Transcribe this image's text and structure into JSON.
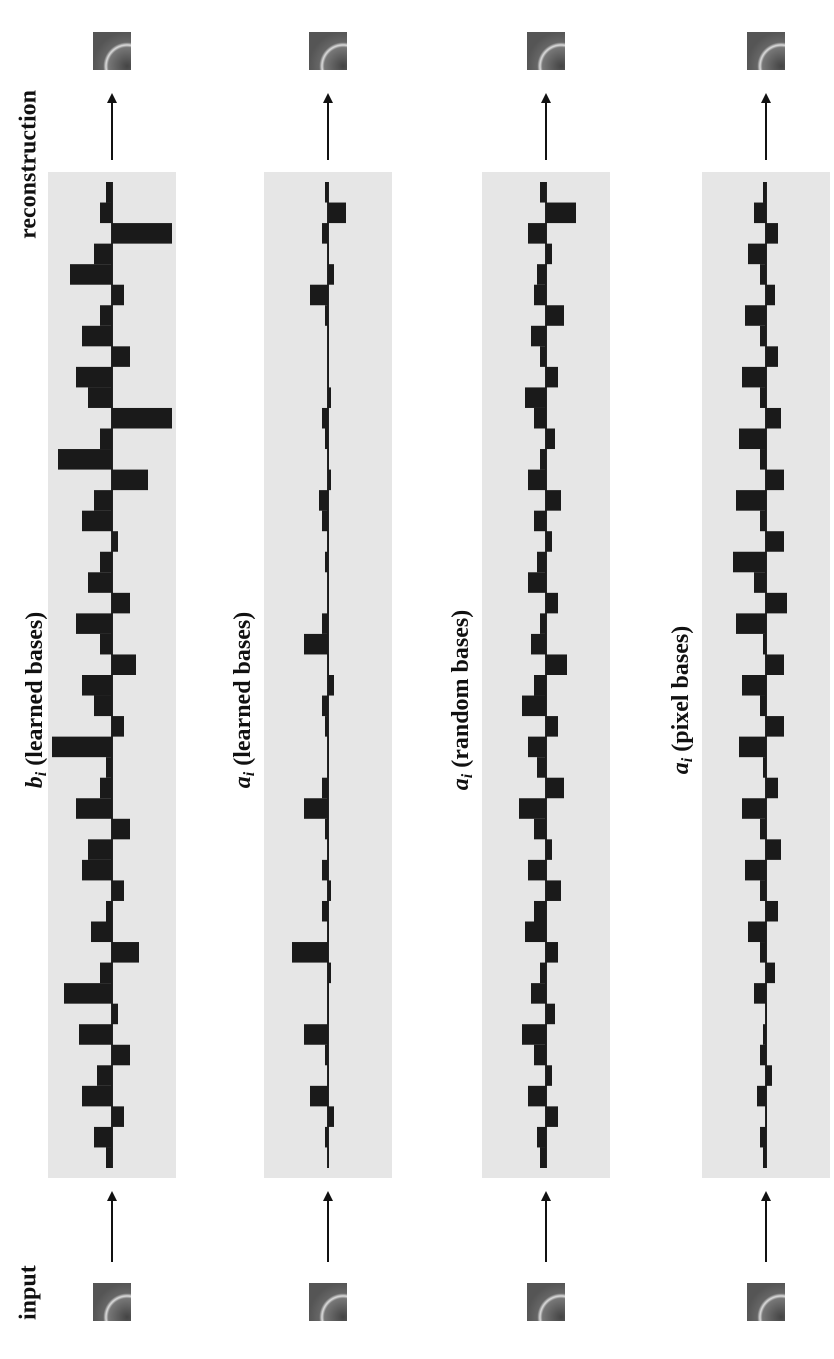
{
  "labels": {
    "input": "input",
    "reconstruction": "reconstruction"
  },
  "chart_data": [
    {
      "type": "bar",
      "title": {
        "symbol": "b",
        "subscript": "i",
        "text": "(learned bases)"
      },
      "values": [
        0.1,
        0.3,
        -0.2,
        0.5,
        0.25,
        -0.3,
        0.55,
        -0.1,
        0.8,
        0.2,
        -0.45,
        0.35,
        0.1,
        -0.2,
        0.5,
        0.4,
        -0.3,
        0.6,
        0.2,
        0.1,
        1.0,
        -0.2,
        0.3,
        0.5,
        -0.4,
        0.2,
        0.6,
        -0.3,
        0.4,
        0.2,
        -0.1,
        0.5,
        0.3,
        -0.6,
        0.9,
        0.2,
        -1.0,
        0.4,
        0.6,
        -0.3,
        0.5,
        0.2,
        -0.2,
        0.7,
        0.3,
        -1.0,
        0.2,
        0.1
      ]
    },
    {
      "type": "bar",
      "title": {
        "symbol": "a",
        "subscript": "i",
        "text": "(learned bases)"
      },
      "values": [
        0,
        0.05,
        -0.1,
        0.3,
        0,
        0.05,
        0.4,
        0,
        0,
        -0.05,
        0.6,
        0,
        0.1,
        -0.05,
        0.1,
        0,
        0.05,
        0.4,
        0.1,
        0,
        0,
        0.05,
        0.1,
        -0.1,
        0,
        0.4,
        0.1,
        0,
        0,
        0.05,
        0,
        0.1,
        0.15,
        -0.05,
        0,
        0.05,
        0.1,
        -0.05,
        0,
        0,
        0,
        0.05,
        0.3,
        -0.1,
        0,
        0.1,
        -0.3,
        0.05
      ]
    },
    {
      "type": "bar",
      "title": {
        "symbol": "a",
        "subscript": "i",
        "text": "(random bases)"
      },
      "values": [
        0.1,
        0.15,
        -0.2,
        0.3,
        -0.1,
        0.2,
        0.4,
        -0.15,
        0.25,
        0.1,
        -0.2,
        0.35,
        0.2,
        -0.25,
        0.3,
        -0.1,
        0.2,
        0.45,
        -0.3,
        0.15,
        0.3,
        -0.2,
        0.4,
        0.2,
        -0.35,
        0.25,
        0.1,
        -0.2,
        0.3,
        0.15,
        -0.1,
        0.2,
        -0.25,
        0.3,
        0.1,
        -0.15,
        0.2,
        0.35,
        -0.2,
        0.1,
        0.25,
        -0.3,
        0.2,
        0.15,
        -0.1,
        0.3,
        -0.5,
        0.1
      ]
    },
    {
      "type": "bar",
      "title": {
        "symbol": "a",
        "subscript": "i",
        "text": "(pixel bases)"
      },
      "values": [
        0.05,
        0.1,
        0,
        0.15,
        -0.1,
        0.1,
        0.05,
        0,
        0.2,
        -0.15,
        0.1,
        0.3,
        -0.2,
        0.1,
        0.35,
        -0.25,
        0.1,
        0.4,
        -0.2,
        0.05,
        0.45,
        -0.3,
        0.1,
        0.4,
        -0.3,
        0.05,
        0.5,
        -0.35,
        0.2,
        0.55,
        -0.3,
        0.1,
        0.5,
        -0.3,
        0.1,
        0.45,
        -0.25,
        0.1,
        0.4,
        -0.2,
        0.1,
        0.35,
        -0.15,
        0.1,
        0.3,
        -0.2,
        0.2,
        0.05
      ]
    }
  ]
}
